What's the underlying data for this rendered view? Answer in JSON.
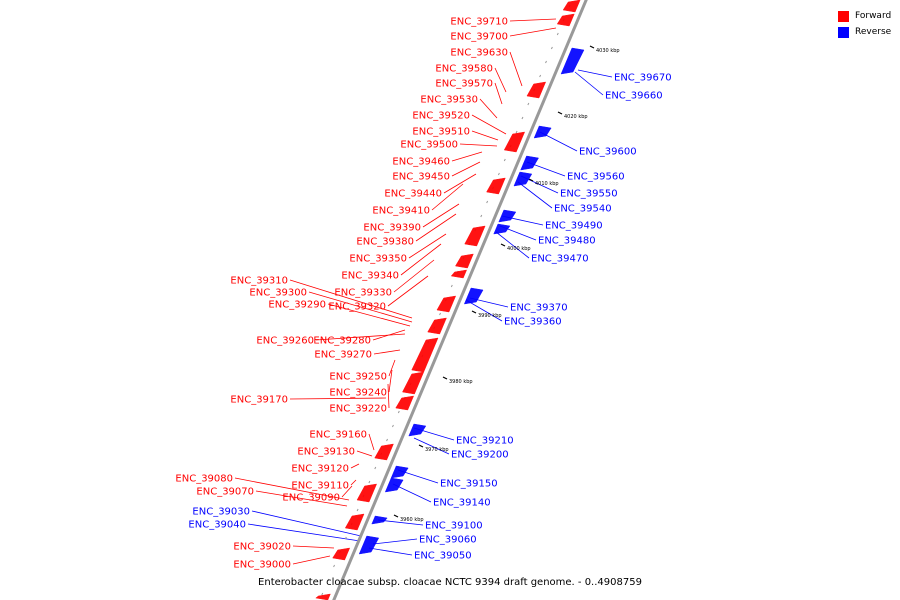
{
  "caption": "Enterobacter cloacae subsp. cloacae NCTC 9394 draft genome. - 0..4908759",
  "legend": [
    {
      "label": "Forward",
      "color": "#ff0000"
    },
    {
      "label": "Reverse",
      "color": "#0000ff"
    }
  ],
  "colors": {
    "forward": "#ff0000",
    "reverse": "#0000ff",
    "backbone": "#999999"
  },
  "ticks": [
    "3960 kbp",
    "3970 kbp",
    "3980 kbp",
    "3990 kbp",
    "4000 kbp",
    "4010 kbp",
    "4020 kbp",
    "4030 kbp"
  ],
  "forward_genes": [
    "ENC_39710",
    "ENC_39700",
    "ENC_39630",
    "ENC_39580",
    "ENC_39570",
    "ENC_39530",
    "ENC_39520",
    "ENC_39510",
    "ENC_39500",
    "ENC_39460",
    "ENC_39450",
    "ENC_39440",
    "ENC_39410",
    "ENC_39390",
    "ENC_39380",
    "ENC_39350",
    "ENC_39340",
    "ENC_39330",
    "ENC_39320",
    "ENC_39310",
    "ENC_39300",
    "ENC_39290",
    "ENC_39280",
    "ENC_39260",
    "ENC_39270",
    "ENC_39250",
    "ENC_39240",
    "ENC_39220",
    "ENC_39170",
    "ENC_39160",
    "ENC_39130",
    "ENC_39120",
    "ENC_39110",
    "ENC_39090",
    "ENC_39080",
    "ENC_39070",
    "ENC_39020",
    "ENC_39000"
  ],
  "reverse_genes": [
    "ENC_39670",
    "ENC_39660",
    "ENC_39600",
    "ENC_39560",
    "ENC_39550",
    "ENC_39540",
    "ENC_39490",
    "ENC_39480",
    "ENC_39470",
    "ENC_39370",
    "ENC_39360",
    "ENC_39210",
    "ENC_39200",
    "ENC_39150",
    "ENC_39140",
    "ENC_39100",
    "ENC_39060",
    "ENC_39050",
    "ENC_39030",
    "ENC_39040"
  ]
}
